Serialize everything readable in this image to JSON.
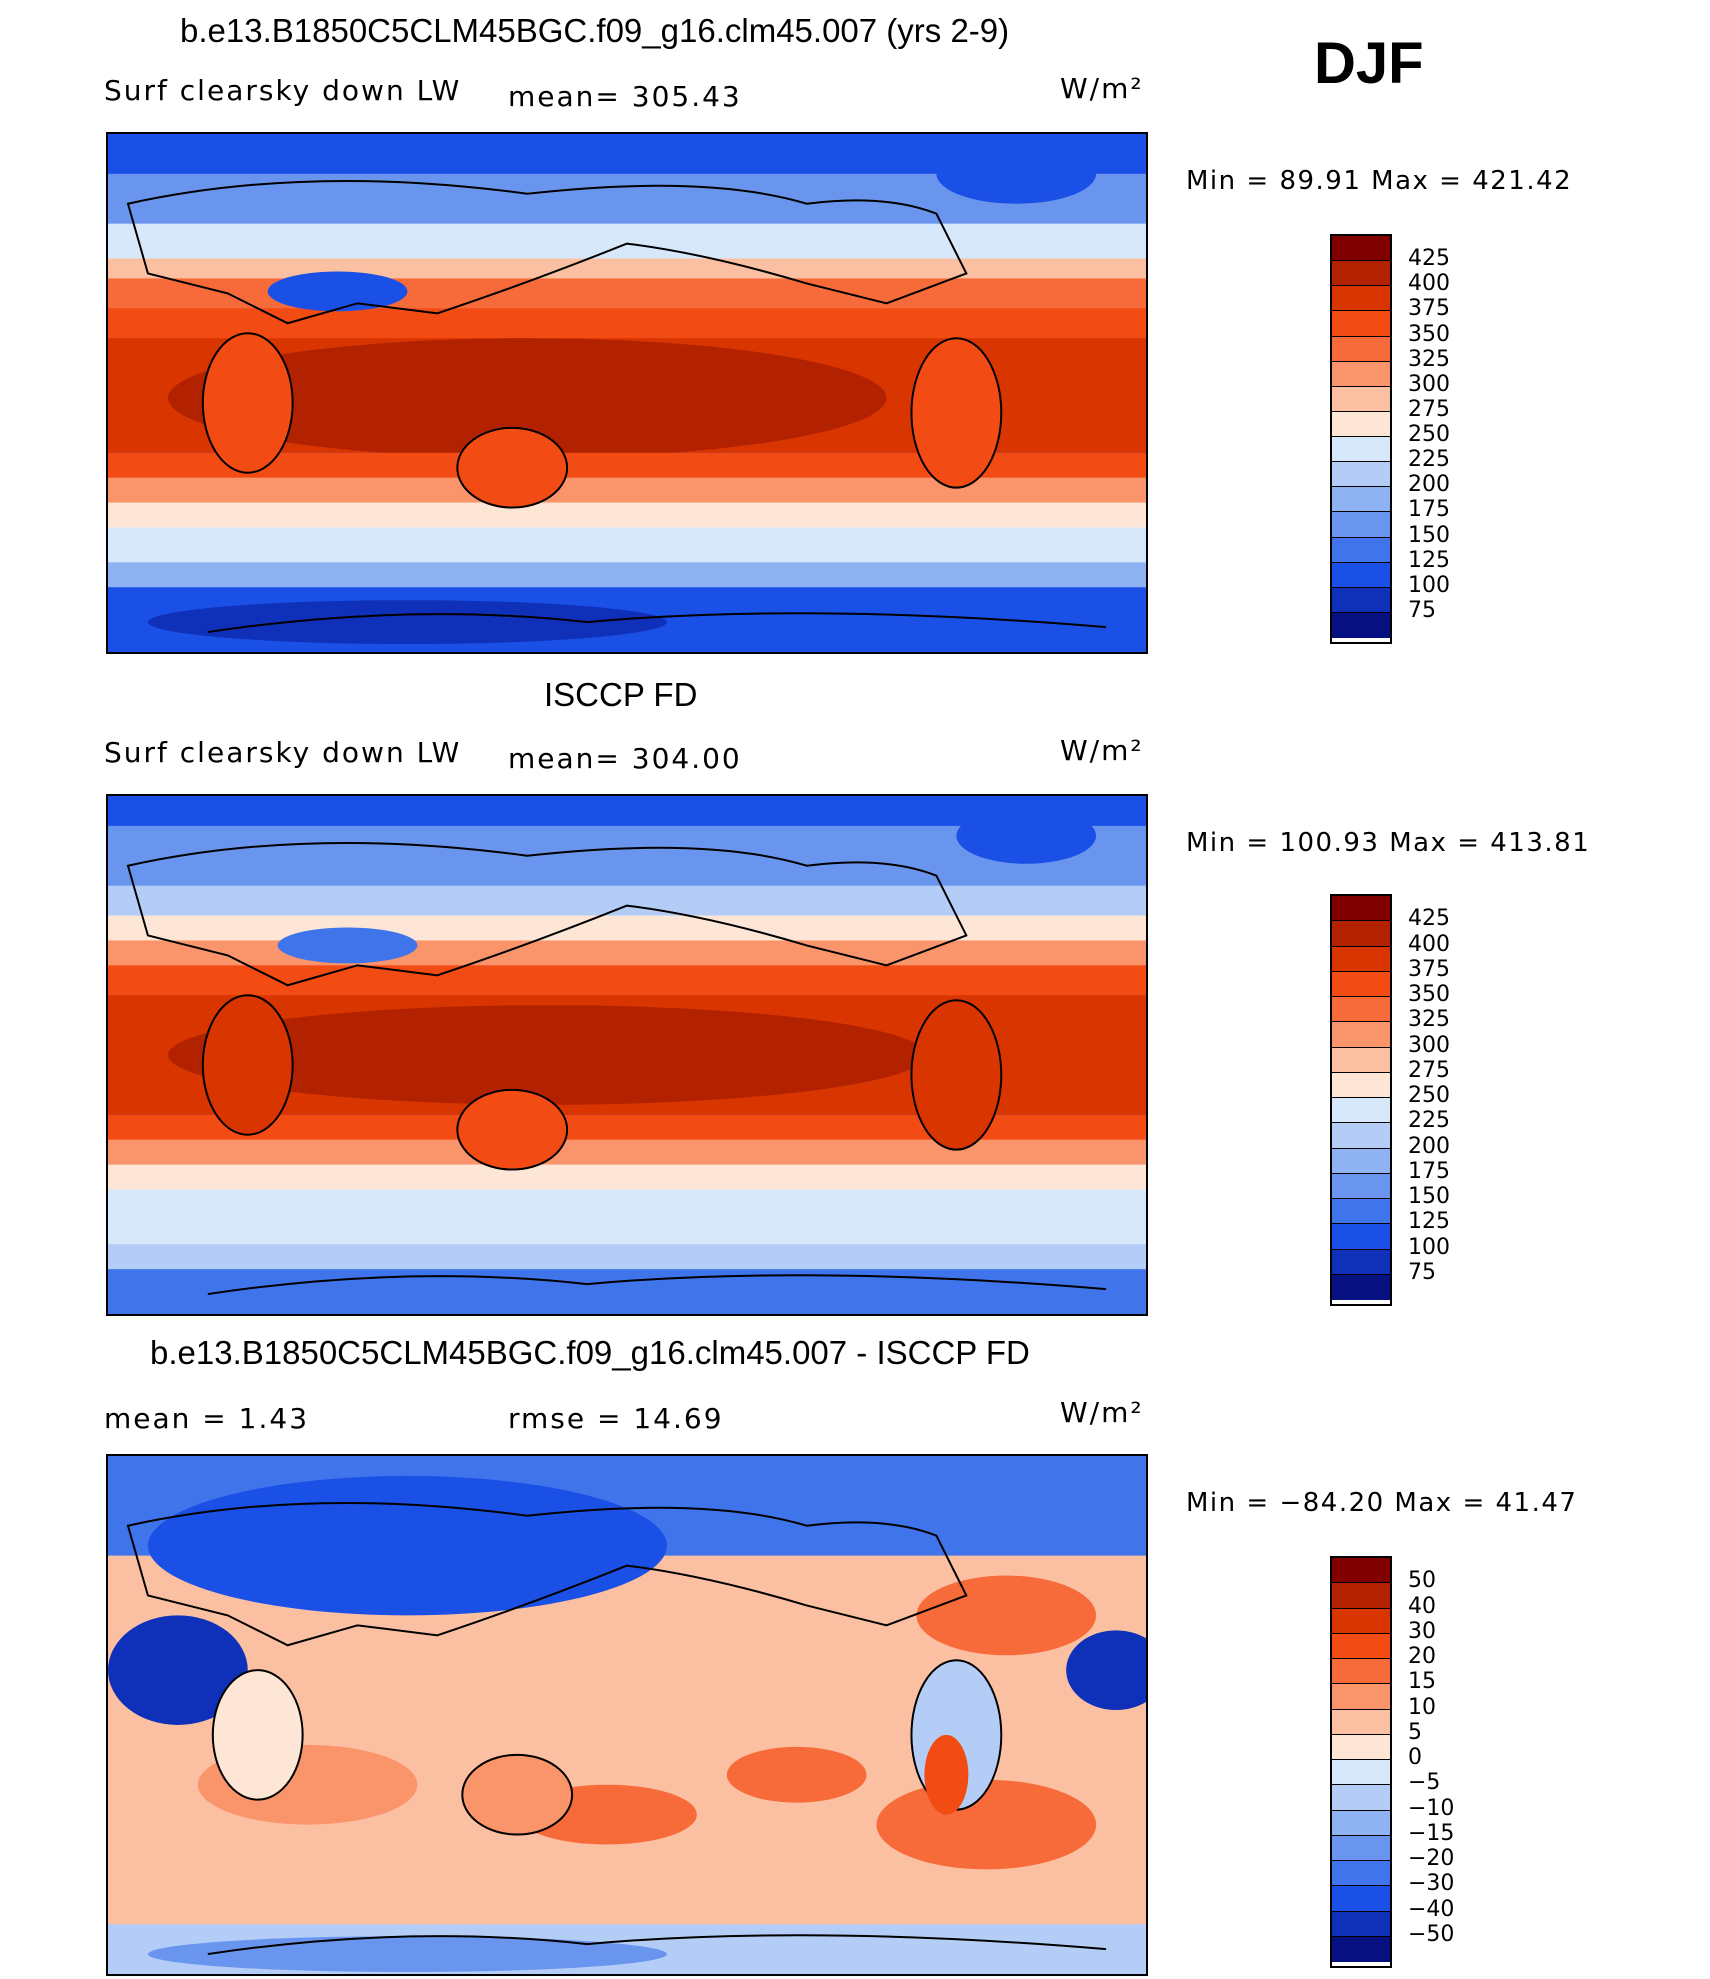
{
  "season": "DJF",
  "panels": [
    {
      "title": "b.e13.B1850C5CLM45BGC.f09_g16.clm45.007 (yrs 2-9)",
      "variable": "Surf  clearsky  down  LW",
      "stat1": "mean=  305.43",
      "stat2": "",
      "units": "W/m²",
      "minmax": "Min  =    89.91  Max  =  421.42",
      "colorbar_ticks": [
        "425",
        "400",
        "375",
        "350",
        "325",
        "300",
        "275",
        "250",
        "225",
        "200",
        "175",
        "150",
        "125",
        "100",
        "75"
      ],
      "colors": [
        "#800000",
        "#b22200",
        "#d93500",
        "#f24b14",
        "#f76b3a",
        "#f9946b",
        "#fbc0a1",
        "#fde6d6",
        "#d8e8fb",
        "#b3cdf7",
        "#8fb2f3",
        "#6a95ee",
        "#3f74eb",
        "#1a50e6",
        "#0f30b8",
        "#061080"
      ]
    },
    {
      "title": "ISCCP FD",
      "variable": "Surf  clearsky  down  LW",
      "stat1": "mean=  304.00",
      "stat2": "",
      "units": "W/m²",
      "minmax": "Min  =  100.93  Max  =  413.81",
      "colorbar_ticks": [
        "425",
        "400",
        "375",
        "350",
        "325",
        "300",
        "275",
        "250",
        "225",
        "200",
        "175",
        "150",
        "125",
        "100",
        "75"
      ],
      "colors": [
        "#800000",
        "#b22200",
        "#d93500",
        "#f24b14",
        "#f76b3a",
        "#f9946b",
        "#fbc0a1",
        "#fde6d6",
        "#d8e8fb",
        "#b3cdf7",
        "#8fb2f3",
        "#6a95ee",
        "#3f74eb",
        "#1a50e6",
        "#0f30b8",
        "#061080"
      ]
    },
    {
      "title": "b.e13.B1850C5CLM45BGC.f09_g16.clm45.007 - ISCCP FD",
      "variable": "",
      "stat1": "mean  =     1.43",
      "stat2": "rmse  =    14.69",
      "units": "W/m²",
      "minmax": "Min  = −84.20  Max  =    41.47",
      "colorbar_ticks": [
        "50",
        "40",
        "30",
        "20",
        "15",
        "10",
        "5",
        "0",
        "−5",
        "−10",
        "−15",
        "−20",
        "−30",
        "−40",
        "−50"
      ],
      "colors": [
        "#800000",
        "#b22200",
        "#d93500",
        "#f24b14",
        "#f76b3a",
        "#f9946b",
        "#fbc0a1",
        "#fde6d6",
        "#d8e8fb",
        "#b3cdf7",
        "#8fb2f3",
        "#6a95ee",
        "#3f74eb",
        "#1a50e6",
        "#0f30b8",
        "#061080"
      ]
    }
  ]
}
